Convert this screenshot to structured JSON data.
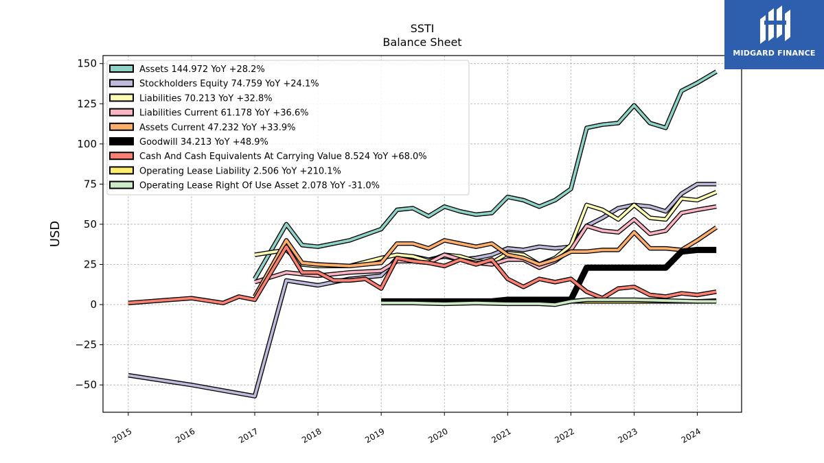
{
  "chart_data": {
    "type": "line",
    "title": "SSTI",
    "subtitle": "Balance  Sheet",
    "xlabel": "",
    "ylabel": "USD",
    "xlim": [
      2014.6,
      2024.7
    ],
    "ylim": [
      -67,
      155
    ],
    "x_ticks": [
      2015,
      2016,
      2017,
      2018,
      2019,
      2020,
      2021,
      2022,
      2023,
      2024
    ],
    "x_tick_labels": [
      "2015",
      "2016",
      "2017",
      "2018",
      "2019",
      "2020",
      "2021",
      "2022",
      "2023",
      "2024"
    ],
    "y_ticks": [
      -50,
      -25,
      0,
      25,
      50,
      75,
      100,
      125,
      150
    ],
    "y_tick_labels": [
      "−50",
      "−25",
      "0",
      "25",
      "50",
      "75",
      "100",
      "125",
      "150"
    ],
    "grid": true,
    "legend_position": "top-left",
    "series": [
      {
        "name": "Assets  144.972 YoY +28.2%",
        "color": "#8dd3c7",
        "points": [
          [
            2017.0,
            16
          ],
          [
            2017.5,
            50
          ],
          [
            2017.75,
            37
          ],
          [
            2018.0,
            36
          ],
          [
            2018.5,
            40
          ],
          [
            2019.0,
            47
          ],
          [
            2019.25,
            59
          ],
          [
            2019.5,
            60
          ],
          [
            2019.75,
            55
          ],
          [
            2020.0,
            61
          ],
          [
            2020.25,
            58
          ],
          [
            2020.5,
            56
          ],
          [
            2020.75,
            57
          ],
          [
            2021.0,
            67
          ],
          [
            2021.25,
            65
          ],
          [
            2021.5,
            61
          ],
          [
            2021.75,
            65
          ],
          [
            2022.0,
            72
          ],
          [
            2022.25,
            110
          ],
          [
            2022.5,
            112
          ],
          [
            2022.75,
            113
          ],
          [
            2023.0,
            124
          ],
          [
            2023.25,
            113
          ],
          [
            2023.5,
            110
          ],
          [
            2023.75,
            133
          ],
          [
            2024.0,
            138
          ],
          [
            2024.3,
            145
          ]
        ]
      },
      {
        "name": "Stockholders Equity  74.759 YoY +24.1%",
        "color": "#bebada",
        "points": [
          [
            2015.0,
            -44
          ],
          [
            2016.0,
            -50
          ],
          [
            2017.0,
            -57
          ],
          [
            2017.5,
            15
          ],
          [
            2018.0,
            12
          ],
          [
            2018.5,
            16
          ],
          [
            2019.0,
            18
          ],
          [
            2019.25,
            29
          ],
          [
            2019.5,
            30
          ],
          [
            2019.75,
            28
          ],
          [
            2020.0,
            30
          ],
          [
            2020.25,
            28
          ],
          [
            2020.5,
            29
          ],
          [
            2020.75,
            31
          ],
          [
            2021.0,
            35
          ],
          [
            2021.25,
            34
          ],
          [
            2021.5,
            36
          ],
          [
            2021.75,
            35
          ],
          [
            2022.0,
            36
          ],
          [
            2022.25,
            49
          ],
          [
            2022.5,
            54
          ],
          [
            2022.75,
            60
          ],
          [
            2023.0,
            62
          ],
          [
            2023.25,
            61
          ],
          [
            2023.5,
            58
          ],
          [
            2023.75,
            69
          ],
          [
            2024.0,
            75
          ],
          [
            2024.3,
            75
          ]
        ]
      },
      {
        "name": "Liabilities  70.213 YoY +32.8%",
        "color": "#ffffb3",
        "points": [
          [
            2017.0,
            31
          ],
          [
            2017.5,
            34
          ],
          [
            2017.75,
            25
          ],
          [
            2018.0,
            24
          ],
          [
            2018.5,
            24
          ],
          [
            2019.0,
            29
          ],
          [
            2019.25,
            31
          ],
          [
            2019.5,
            30
          ],
          [
            2019.75,
            27
          ],
          [
            2020.0,
            31
          ],
          [
            2020.25,
            30
          ],
          [
            2020.5,
            27
          ],
          [
            2020.75,
            26
          ],
          [
            2021.0,
            32
          ],
          [
            2021.25,
            31
          ],
          [
            2021.5,
            25
          ],
          [
            2021.75,
            29
          ],
          [
            2022.0,
            37
          ],
          [
            2022.25,
            62
          ],
          [
            2022.5,
            59
          ],
          [
            2022.75,
            53
          ],
          [
            2023.0,
            62
          ],
          [
            2023.25,
            54
          ],
          [
            2023.5,
            53
          ],
          [
            2023.75,
            66
          ],
          [
            2024.0,
            65
          ],
          [
            2024.3,
            70
          ]
        ]
      },
      {
        "name": "Liabilities Current  61.178 YoY +36.6%",
        "color": "#fbb4c3",
        "points": [
          [
            2017.0,
            14
          ],
          [
            2017.5,
            20
          ],
          [
            2017.75,
            19
          ],
          [
            2018.0,
            18
          ],
          [
            2018.5,
            20
          ],
          [
            2019.0,
            21
          ],
          [
            2019.25,
            27
          ],
          [
            2019.5,
            27
          ],
          [
            2019.75,
            26
          ],
          [
            2020.0,
            31
          ],
          [
            2020.25,
            28
          ],
          [
            2020.5,
            26
          ],
          [
            2020.75,
            25
          ],
          [
            2021.0,
            28
          ],
          [
            2021.25,
            28
          ],
          [
            2021.5,
            23
          ],
          [
            2021.75,
            27
          ],
          [
            2022.0,
            34
          ],
          [
            2022.25,
            49
          ],
          [
            2022.5,
            46
          ],
          [
            2022.75,
            45
          ],
          [
            2023.0,
            53
          ],
          [
            2023.25,
            44
          ],
          [
            2023.5,
            46
          ],
          [
            2023.75,
            57
          ],
          [
            2024.0,
            59
          ],
          [
            2024.3,
            61
          ]
        ]
      },
      {
        "name": "Assets Current  47.232 YoY +33.9%",
        "color": "#fdae6b",
        "points": [
          [
            2017.0,
            5
          ],
          [
            2017.5,
            40
          ],
          [
            2017.75,
            26
          ],
          [
            2018.0,
            25
          ],
          [
            2018.5,
            24
          ],
          [
            2019.0,
            26
          ],
          [
            2019.25,
            38
          ],
          [
            2019.5,
            38
          ],
          [
            2019.75,
            35
          ],
          [
            2020.0,
            40
          ],
          [
            2020.25,
            38
          ],
          [
            2020.5,
            36
          ],
          [
            2020.75,
            38
          ],
          [
            2021.0,
            31
          ],
          [
            2021.25,
            29
          ],
          [
            2021.5,
            25
          ],
          [
            2021.75,
            28
          ],
          [
            2022.0,
            33
          ],
          [
            2022.25,
            33
          ],
          [
            2022.5,
            34
          ],
          [
            2022.75,
            34
          ],
          [
            2023.0,
            45
          ],
          [
            2023.25,
            35
          ],
          [
            2023.5,
            35
          ],
          [
            2023.75,
            34
          ],
          [
            2024.0,
            40
          ],
          [
            2024.3,
            48
          ]
        ]
      },
      {
        "name": "Goodwill  34.213 YoY +48.9%",
        "color": "#000000",
        "points": [
          [
            2019.0,
            2
          ],
          [
            2020.0,
            2
          ],
          [
            2020.75,
            2
          ],
          [
            2021.0,
            3
          ],
          [
            2022.0,
            3
          ],
          [
            2022.25,
            23
          ],
          [
            2023.0,
            23
          ],
          [
            2023.5,
            23
          ],
          [
            2023.75,
            33
          ],
          [
            2024.0,
            34
          ],
          [
            2024.3,
            34
          ]
        ]
      },
      {
        "name": "Cash And Cash Equivalents At Carrying Value  8.524 YoY +68.0%",
        "color": "#fb8072",
        "points": [
          [
            2015.0,
            1
          ],
          [
            2016.0,
            4
          ],
          [
            2016.5,
            1
          ],
          [
            2016.75,
            5
          ],
          [
            2017.0,
            3
          ],
          [
            2017.5,
            36
          ],
          [
            2017.75,
            20
          ],
          [
            2018.0,
            20
          ],
          [
            2018.25,
            15
          ],
          [
            2018.5,
            15
          ],
          [
            2018.75,
            16
          ],
          [
            2019.0,
            10
          ],
          [
            2019.25,
            29
          ],
          [
            2019.5,
            27
          ],
          [
            2019.75,
            26
          ],
          [
            2020.0,
            24
          ],
          [
            2020.25,
            28
          ],
          [
            2020.5,
            25
          ],
          [
            2020.75,
            28
          ],
          [
            2021.0,
            16
          ],
          [
            2021.25,
            11
          ],
          [
            2021.5,
            16
          ],
          [
            2021.75,
            14
          ],
          [
            2022.0,
            16
          ],
          [
            2022.25,
            8
          ],
          [
            2022.5,
            4
          ],
          [
            2022.75,
            10
          ],
          [
            2023.0,
            11
          ],
          [
            2023.25,
            6
          ],
          [
            2023.5,
            5
          ],
          [
            2023.75,
            7
          ],
          [
            2024.0,
            6
          ],
          [
            2024.3,
            8
          ]
        ]
      },
      {
        "name": "Operating Lease Liability  2.506 YoY +210.1%",
        "color": "#ffed6f",
        "points": [
          [
            2022.0,
            2
          ],
          [
            2022.5,
            2
          ],
          [
            2023.0,
            2
          ],
          [
            2023.5,
            2
          ],
          [
            2024.0,
            2
          ],
          [
            2024.3,
            2.5
          ]
        ]
      },
      {
        "name": "Operating Lease Right Of Use Asset  2.078 YoY -31.0%",
        "color": "#ccebc5",
        "points": [
          [
            2019.0,
            1
          ],
          [
            2019.5,
            1
          ],
          [
            2020.0,
            0.5
          ],
          [
            2020.5,
            1
          ],
          [
            2021.0,
            0.5
          ],
          [
            2021.5,
            0.5
          ],
          [
            2021.75,
            0
          ],
          [
            2022.0,
            2
          ],
          [
            2022.25,
            3
          ],
          [
            2023.0,
            3
          ],
          [
            2023.5,
            2.5
          ],
          [
            2024.0,
            2
          ],
          [
            2024.3,
            2
          ]
        ]
      }
    ]
  },
  "logo": {
    "text": "MIDGARD FINANCE"
  }
}
